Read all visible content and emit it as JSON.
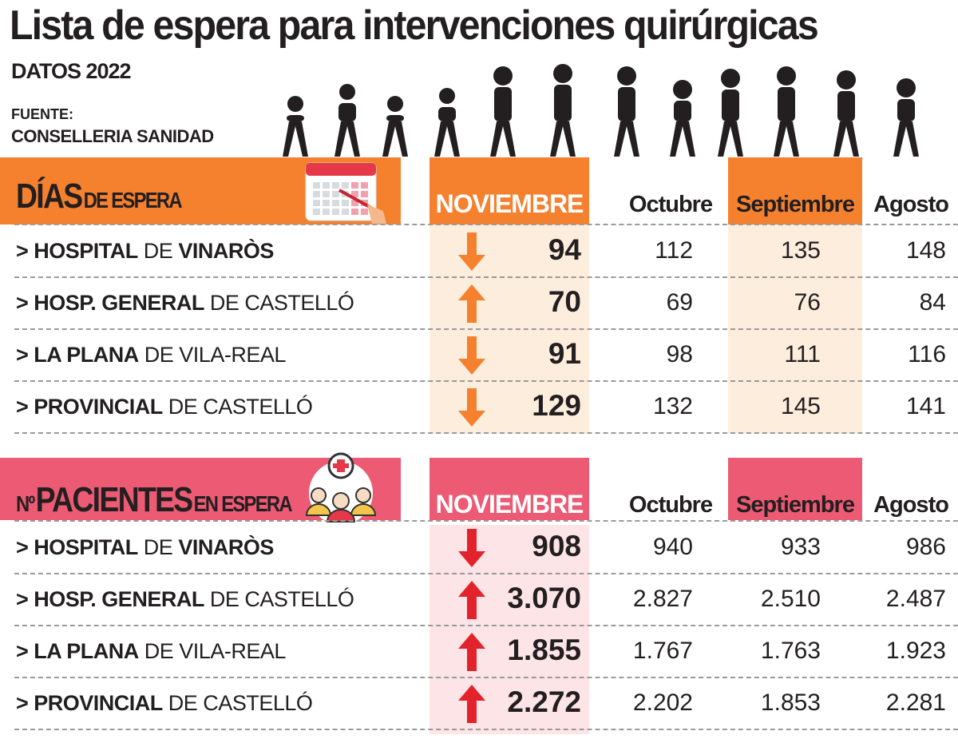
{
  "header": {
    "title": "Lista de espera para intervenciones quirúrgicas",
    "subtitle": "DATOS 2022",
    "source_label": "FUENTE:",
    "source": "CONSELLERIA SANIDAD"
  },
  "colors": {
    "orange": "#f5812f",
    "orange_light": "#fdeddd",
    "pink": "#ec5a74",
    "pink_light": "#fde4e7",
    "arrow_orange": "#f5812f",
    "arrow_red": "#e3232b"
  },
  "chart_data": {
    "type": "table",
    "tables": [
      {
        "title_bold": "DÍAS",
        "title_rest": "DE ESPERA",
        "icon": "calendar-icon",
        "columns": [
          "NOVIEMBRE",
          "Octubre",
          "Septiembre",
          "Agosto"
        ],
        "rows": [
          {
            "bold": "> HOSPITAL",
            "rest": "DE",
            "bold2": "VINARÒS",
            "trend": "down",
            "values": [
              "94",
              "112",
              "135",
              "148"
            ]
          },
          {
            "bold": "> HOSP. GENERAL",
            "rest": "DE CASTELLÓ",
            "bold2": "",
            "trend": "up",
            "values": [
              "70",
              "69",
              "76",
              "84"
            ]
          },
          {
            "bold": "> LA PLANA",
            "rest": "DE VILA-REAL",
            "bold2": "",
            "trend": "down",
            "values": [
              "91",
              "98",
              "111",
              "116"
            ]
          },
          {
            "bold": "> PROVINCIAL",
            "rest": "DE CASTELLÓ",
            "bold2": "",
            "trend": "down",
            "values": [
              "129",
              "132",
              "145",
              "141"
            ]
          }
        ]
      },
      {
        "title_prefix": "Nº",
        "title_bold": "PACIENTES",
        "title_rest": "EN ESPERA",
        "icon": "patients-icon",
        "columns": [
          "NOVIEMBRE",
          "Octubre",
          "Septiembre",
          "Agosto"
        ],
        "rows": [
          {
            "bold": "> HOSPITAL",
            "rest": "DE",
            "bold2": "VINARÒS",
            "trend": "down",
            "values": [
              "908",
              "940",
              "933",
              "986"
            ]
          },
          {
            "bold": "> HOSP. GENERAL",
            "rest": "DE CASTELLÓ",
            "bold2": "",
            "trend": "up",
            "values": [
              "3.070",
              "2.827",
              "2.510",
              "2.487"
            ]
          },
          {
            "bold": "> LA PLANA",
            "rest": "DE VILA-REAL",
            "bold2": "",
            "trend": "up",
            "values": [
              "1.855",
              "1.767",
              "1.763",
              "1.923"
            ]
          },
          {
            "bold": "> PROVINCIAL",
            "rest": "DE CASTELLÓ",
            "bold2": "",
            "trend": "up",
            "values": [
              "2.272",
              "2.202",
              "1.853",
              "2.281"
            ]
          }
        ]
      }
    ]
  }
}
